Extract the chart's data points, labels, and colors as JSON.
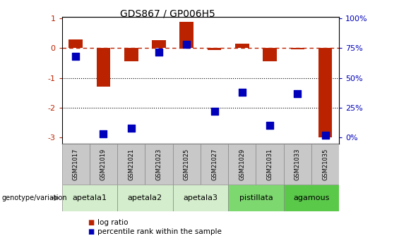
{
  "title": "GDS867 / GP006H5",
  "samples": [
    "GSM21017",
    "GSM21019",
    "GSM21021",
    "GSM21023",
    "GSM21025",
    "GSM21027",
    "GSM21029",
    "GSM21031",
    "GSM21033",
    "GSM21035"
  ],
  "log_ratio": [
    0.3,
    -1.3,
    -0.45,
    0.28,
    0.88,
    -0.07,
    0.15,
    -0.45,
    -0.03,
    -3.0
  ],
  "percentile_rank": [
    68,
    3,
    8,
    72,
    78,
    22,
    38,
    10,
    37,
    2
  ],
  "groups": [
    {
      "label": "apetala1",
      "color": "#d4edcc",
      "samples": [
        0,
        1
      ]
    },
    {
      "label": "apetala2",
      "color": "#d4edcc",
      "samples": [
        2,
        3
      ]
    },
    {
      "label": "apetala3",
      "color": "#d4edcc",
      "samples": [
        4,
        5
      ]
    },
    {
      "label": "pistillata",
      "color": "#7ed870",
      "samples": [
        6,
        7
      ]
    },
    {
      "label": "agamous",
      "color": "#5ac94a",
      "samples": [
        8,
        9
      ]
    }
  ],
  "ylim_min": -3.2,
  "ylim_max": 1.05,
  "yticks_left": [
    -3,
    -2,
    -1,
    0,
    1
  ],
  "yticks_right": [
    0,
    25,
    50,
    75,
    100
  ],
  "bar_color": "#bb2200",
  "dot_color": "#0000bb",
  "dotted_lines": [
    -1,
    -2
  ],
  "bar_width": 0.5,
  "dot_size": 50,
  "legend_items": [
    "log ratio",
    "percentile rank within the sample"
  ],
  "genotype_label": "genotype/variation",
  "sample_box_color": "#c8c8c8",
  "sample_box_border": "#888888"
}
